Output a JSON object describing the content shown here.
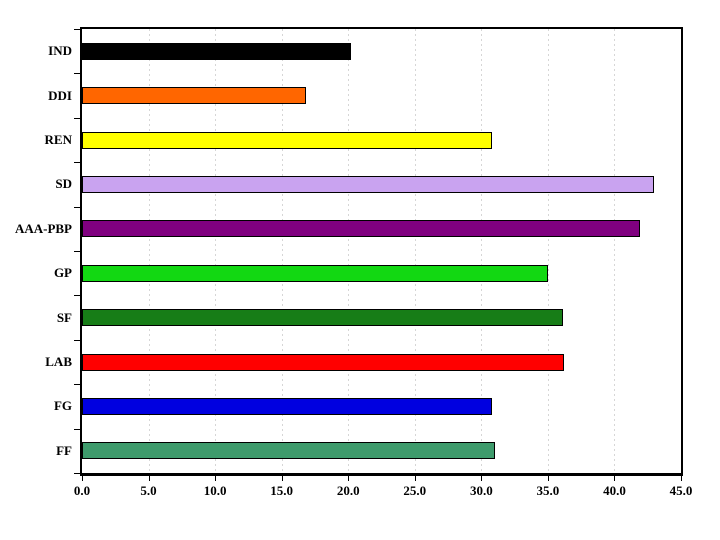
{
  "chart_data": {
    "type": "bar",
    "orientation": "horizontal",
    "title": "",
    "xlabel": "",
    "ylabel": "",
    "categories": [
      "IND",
      "DDI",
      "REN",
      "SD",
      "AAA-PBP",
      "GP",
      "SF",
      "LAB",
      "FG",
      "FF"
    ],
    "values": [
      20.2,
      16.8,
      30.8,
      43.0,
      41.9,
      35.0,
      36.1,
      36.2,
      30.8,
      31.0
    ],
    "bar_colors": [
      "#000000",
      "#FF6600",
      "#FFFF00",
      "#C9A3F0",
      "#800080",
      "#12D812",
      "#177D17",
      "#FF0000",
      "#0000E0",
      "#3E9B6C"
    ],
    "xlim": [
      0,
      45
    ],
    "x_ticks": [
      "0.0",
      "5.0",
      "10.0",
      "15.0",
      "20.0",
      "25.0",
      "30.0",
      "35.0",
      "40.0",
      "45.0"
    ],
    "grid": "vertical-dashed",
    "grid_color": "#D6D6D6",
    "bar_border_color": "#000000",
    "axis_color": "#000000",
    "background_color": "#FFFFFF",
    "legend": "none"
  }
}
